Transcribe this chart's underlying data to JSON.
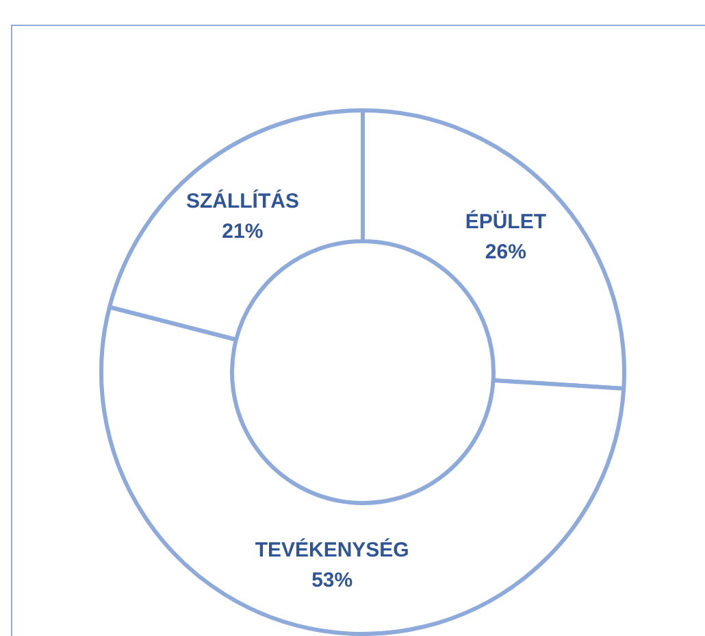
{
  "chart_data": {
    "type": "donut",
    "categories": [
      "ÉPÜLET",
      "TEVÉKENYSÉG",
      "SZÁLLÍTÁS"
    ],
    "values": [
      26,
      53,
      21
    ],
    "value_labels": [
      "26%",
      "53%",
      "21%"
    ],
    "colors": [
      "#ffffff",
      "#ffffff",
      "#ffffff"
    ],
    "legend": false
  }
}
